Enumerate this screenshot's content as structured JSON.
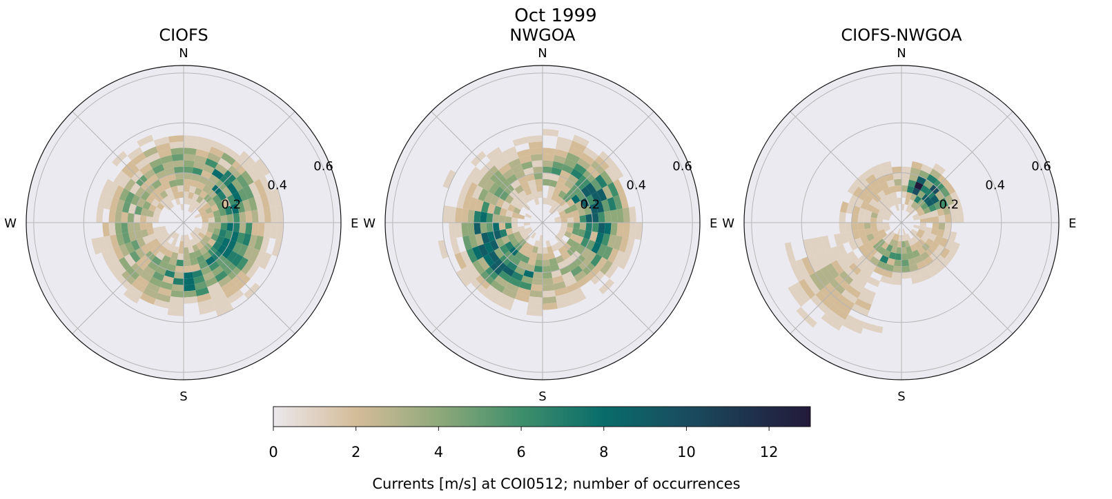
{
  "figure": {
    "suptitle": "Oct 1999"
  },
  "chart_data": {
    "type": "heatmap",
    "projection": "polar wind-rose (direction vs speed) 2-D histogram",
    "direction_labels": [
      "N",
      "E",
      "S",
      "W"
    ],
    "radial_ticks": [
      0.2,
      0.4,
      0.6
    ],
    "radial_lim": [
      0,
      0.63
    ],
    "speed_bin_width": 0.025,
    "direction_sectors": 36,
    "grid": true,
    "colormap": "thermal-like (white → tan → green → teal → navy)",
    "colors": {
      "low": "#ebe8ec",
      "tan": "#d4bc99",
      "sage": "#8fa97a",
      "green": "#3e8e6b",
      "teal": "#086c6a",
      "navy": "#23193a",
      "axes_bg": "#eceaf1"
    },
    "colorbar": {
      "ticks": [
        0,
        2,
        4,
        6,
        8,
        10,
        12
      ],
      "range": [
        0,
        13
      ],
      "label": "Currents [m/s] at COI0512; number of occurrences"
    },
    "panels": [
      {
        "title": "CIOFS",
        "description": "broad, fairly symmetric distribution; counts mostly 1-7 at speeds 0.05-0.35 m/s with outliers to 0.45 m/s toward SE/E/W",
        "seed": 11,
        "max_count": 8
      },
      {
        "title": "NWGOA",
        "description": "elongated ENE-WSW; counts up to ~9 at 0.2-0.3 m/s toward WSW and ENE",
        "seed": 27,
        "max_count": 9
      },
      {
        "title": "CIOFS-NWGOA",
        "description": "concentrated NE at ~0.15-0.2 m/s with peak ~13, secondary cluster to SSW; tail to 0.55 m/s toward SW",
        "seed": 53,
        "max_count": 13
      }
    ]
  }
}
